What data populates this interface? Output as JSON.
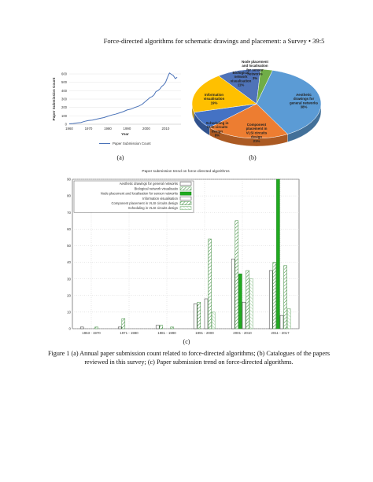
{
  "header": {
    "running_title": "Force-directed algorithms for schematic drawings and placement: a Survey",
    "bullet": "•",
    "page": "39:5"
  },
  "figure_a": {
    "label": "(a)",
    "chart_data": {
      "type": "line",
      "ylabel": "Paper Submission Count",
      "xlabel": "Year",
      "legend": "Paper Submission Count",
      "legend_position": "bottom",
      "x_ticks": [
        "1960",
        "1970",
        "1980",
        "1990",
        "2000",
        "2010"
      ],
      "y_ticks": [
        "0",
        "100",
        "200",
        "300",
        "400",
        "500",
        "600"
      ],
      "xlim": [
        1960,
        2018
      ],
      "ylim": [
        0,
        600
      ],
      "series": [
        {
          "name": "Paper Submission Count",
          "color": "#4a72b8",
          "x": [
            1960,
            1962,
            1964,
            1966,
            1968,
            1970,
            1972,
            1974,
            1976,
            1978,
            1980,
            1982,
            1984,
            1986,
            1988,
            1990,
            1992,
            1994,
            1996,
            1998,
            2000,
            2001,
            2002,
            2003,
            2004,
            2005,
            2006,
            2007,
            2008,
            2009,
            2010,
            2011,
            2012,
            2013,
            2014,
            2015,
            2016
          ],
          "y": [
            5,
            8,
            15,
            20,
            35,
            45,
            50,
            60,
            70,
            80,
            95,
            110,
            120,
            135,
            150,
            170,
            180,
            200,
            215,
            240,
            280,
            300,
            320,
            330,
            350,
            390,
            400,
            420,
            450,
            470,
            500,
            560,
            610,
            595,
            580,
            545,
            560
          ]
        }
      ]
    }
  },
  "figure_b": {
    "label": "(b)",
    "chart_data": {
      "type": "pie",
      "slices": [
        {
          "label": "Aesthetic drawings for general networks",
          "value": 38,
          "text": "38%",
          "color": "#5b9bd5"
        },
        {
          "label": "Component placement in VLSI circuits design",
          "value": 21,
          "text": "21%",
          "color": "#ed7d31"
        },
        {
          "label": "Scheduling in VLSI circuits design",
          "value": 8,
          "text": "8%",
          "color": "#4472c4"
        },
        {
          "label": "Information visualisation",
          "value": 19,
          "text": "19%",
          "color": "#ffc000"
        },
        {
          "label": "Biological network visualisation",
          "value": 11,
          "text": "11%",
          "color": "#4f73b8"
        },
        {
          "label": "Node placement and localisation for sensor networks",
          "value": 3,
          "text": "3%",
          "color": "#70ad47"
        }
      ]
    }
  },
  "figure_c": {
    "label": "(c)",
    "chart_data": {
      "type": "bar",
      "title": "Paper submission trend on force-directed algorithms",
      "categories": [
        "1963 - 1970",
        "1971 - 1980",
        "1981 - 1990",
        "1991 - 2000",
        "2001 - 2010",
        "2011 - 2017"
      ],
      "ylim": [
        0,
        90
      ],
      "y_ticks": [
        "0",
        "10",
        "20",
        "30",
        "40",
        "50",
        "60",
        "70",
        "80",
        "90"
      ],
      "legend_position": "top-left",
      "series": [
        {
          "name": "Aesthetic drawings for general networks",
          "style": "white",
          "values": [
            1,
            1,
            2,
            15,
            42,
            35
          ]
        },
        {
          "name": "Biological network visualisatio",
          "style": "hatch",
          "values": [
            0,
            6,
            2,
            16,
            65,
            40
          ]
        },
        {
          "name": "Node placement and localisation for sensor networks",
          "style": "green",
          "values": [
            0,
            0,
            0,
            0,
            33,
            90
          ]
        },
        {
          "name": "Information visualisation",
          "style": "white",
          "values": [
            0,
            0,
            0,
            18,
            16,
            8
          ]
        },
        {
          "name": "Component placement in VLSI circuits design",
          "style": "hatch",
          "values": [
            1,
            0,
            1,
            54,
            35,
            38
          ]
        },
        {
          "name": "Scheduling in VLSI circuits design",
          "style": "hatch-light",
          "values": [
            0,
            0,
            0,
            10,
            30,
            12
          ]
        }
      ]
    }
  },
  "caption": {
    "line1": "Figure 1 (a) Annual paper submission count related to force-directed algorithms; (b) Catalogues of the papers",
    "line2": "reviewed in this survey; (c) Paper submission trend on force-directed algorithms."
  }
}
